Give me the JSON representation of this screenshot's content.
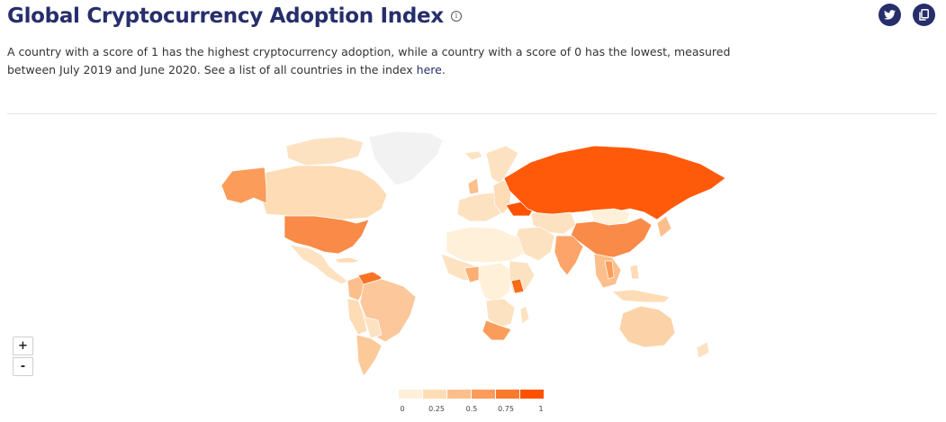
{
  "header": {
    "title": "Global Cryptocurrency Adoption Index",
    "info_icon": "info-icon"
  },
  "description": {
    "text_before_link": "A country with a score of 1 has the highest cryptocurrency adoption, while a country with a score of 0 has the lowest, measured between July 2019 and June 2020. See a list of all countries in the index ",
    "link_label": "here",
    "text_after_link": "."
  },
  "share": {
    "twitter_icon": "twitter-icon",
    "copy_icon": "copy-icon"
  },
  "zoom": {
    "in_label": "+",
    "out_label": "-"
  },
  "legend": {
    "ticks": [
      "0",
      "0.25",
      "0.5",
      "0.75",
      "1"
    ],
    "colors": [
      "#fff0d9",
      "#fddcb6",
      "#fcbf8c",
      "#fb9c5b",
      "#f97a2f",
      "#ff5200"
    ]
  },
  "colors": {
    "brand": "#262e6b",
    "no_data": "#f0f0f0",
    "scale_low": "#fff0d9",
    "scale_high": "#ff5200"
  },
  "chart_data": {
    "type": "choropleth",
    "metric_range": [
      0,
      1
    ],
    "regions": [
      {
        "name": "Russia",
        "value": 0.95
      },
      {
        "name": "Ukraine",
        "value": 1.0
      },
      {
        "name": "Kenya",
        "value": 0.9
      },
      {
        "name": "Venezuela",
        "value": 0.85
      },
      {
        "name": "China",
        "value": 0.6
      },
      {
        "name": "United States",
        "value": 0.55
      },
      {
        "name": "South Africa",
        "value": 0.6
      },
      {
        "name": "Nigeria",
        "value": 0.5
      },
      {
        "name": "India",
        "value": 0.45
      },
      {
        "name": "Vietnam",
        "value": 0.45
      },
      {
        "name": "Alaska",
        "value": 0.55
      },
      {
        "name": "Colombia",
        "value": 0.45
      },
      {
        "name": "Brazil",
        "value": 0.3
      },
      {
        "name": "Argentina",
        "value": 0.25
      },
      {
        "name": "Canada",
        "value": 0.2
      },
      {
        "name": "Australia",
        "value": 0.2
      },
      {
        "name": "Greenland",
        "value": null
      }
    ]
  }
}
